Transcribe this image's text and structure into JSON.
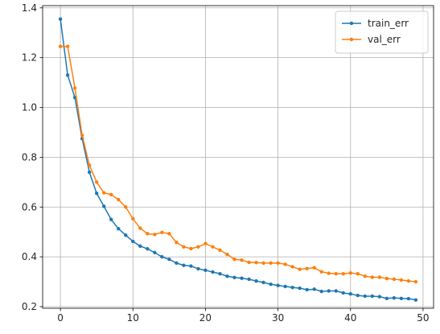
{
  "chart_data": {
    "type": "line",
    "title": "",
    "xlabel": "",
    "ylabel": "",
    "xlim": [
      -2.45,
      51.45
    ],
    "ylim": [
      0.1935,
      1.409
    ],
    "xticks": [
      0,
      10,
      20,
      30,
      40,
      50
    ],
    "yticks": [
      0.2,
      0.4,
      0.6,
      0.8,
      1.0,
      1.2,
      1.4
    ],
    "xtick_labels": [
      "0",
      "10",
      "20",
      "30",
      "40",
      "50"
    ],
    "ytick_labels": [
      "0.2",
      "0.4",
      "0.6",
      "0.8",
      "1.0",
      "1.2",
      "1.4"
    ],
    "grid": true,
    "legend_position": "top-right",
    "x": [
      0,
      1,
      2,
      3,
      4,
      5,
      6,
      7,
      8,
      9,
      10,
      11,
      12,
      13,
      14,
      15,
      16,
      17,
      18,
      19,
      20,
      21,
      22,
      23,
      24,
      25,
      26,
      27,
      28,
      29,
      30,
      31,
      32,
      33,
      34,
      35,
      36,
      37,
      38,
      39,
      40,
      41,
      42,
      43,
      44,
      45,
      46,
      47,
      48,
      49
    ],
    "series": [
      {
        "name": "train_err",
        "color": "#1f77b4",
        "marker": "circle",
        "values": [
          1.355,
          1.13,
          1.04,
          0.875,
          0.74,
          0.655,
          0.603,
          0.55,
          0.513,
          0.487,
          0.462,
          0.443,
          0.432,
          0.417,
          0.4,
          0.39,
          0.375,
          0.366,
          0.363,
          0.352,
          0.346,
          0.339,
          0.332,
          0.322,
          0.317,
          0.314,
          0.31,
          0.303,
          0.297,
          0.29,
          0.285,
          0.281,
          0.277,
          0.274,
          0.268,
          0.27,
          0.261,
          0.263,
          0.263,
          0.255,
          0.251,
          0.245,
          0.242,
          0.242,
          0.24,
          0.233,
          0.235,
          0.233,
          0.232,
          0.227
        ]
      },
      {
        "name": "val_err",
        "color": "#ff7f0e",
        "marker": "circle",
        "values": [
          1.245,
          1.245,
          1.078,
          0.888,
          0.768,
          0.7,
          0.657,
          0.65,
          0.63,
          0.6,
          0.553,
          0.515,
          0.493,
          0.49,
          0.498,
          0.493,
          0.458,
          0.44,
          0.433,
          0.44,
          0.453,
          0.44,
          0.427,
          0.41,
          0.39,
          0.387,
          0.378,
          0.377,
          0.375,
          0.375,
          0.375,
          0.37,
          0.36,
          0.35,
          0.353,
          0.356,
          0.34,
          0.334,
          0.332,
          0.332,
          0.335,
          0.332,
          0.322,
          0.318,
          0.318,
          0.313,
          0.31,
          0.307,
          0.303,
          0.3
        ]
      }
    ]
  },
  "style": {
    "grid_color": "#b0b0b0",
    "axis_color": "#000000",
    "background": "#ffffff"
  }
}
